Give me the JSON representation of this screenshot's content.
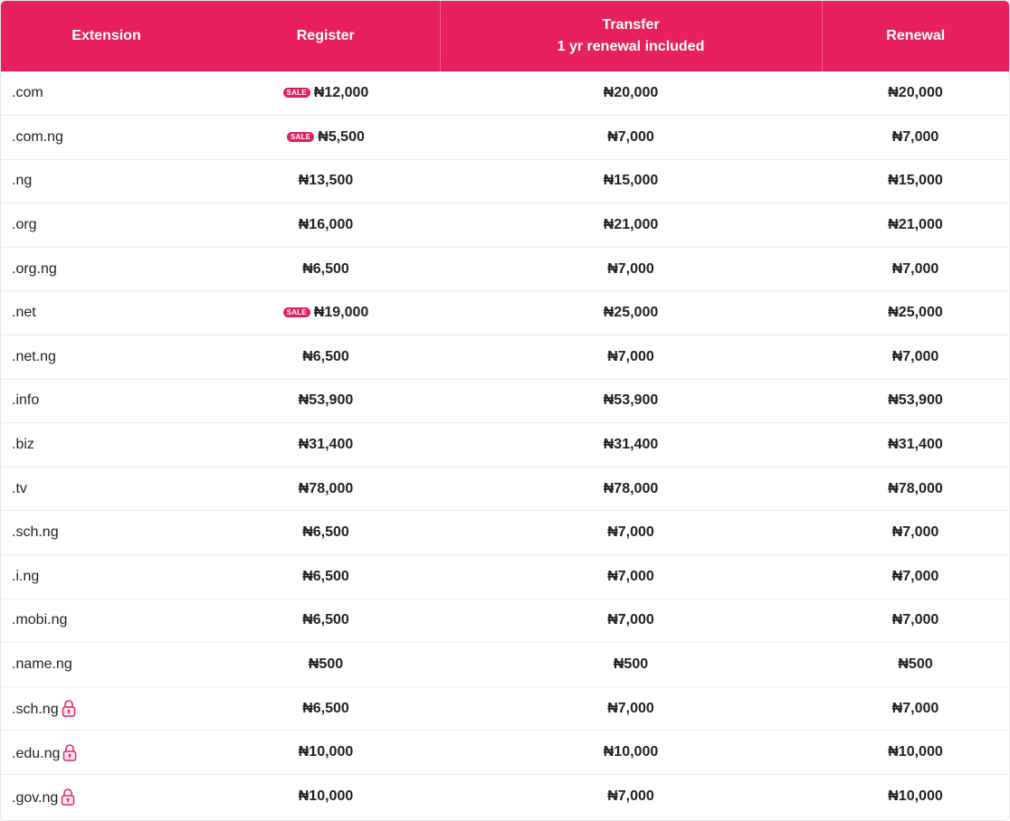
{
  "colors": {
    "header_bg": "#e8205f",
    "header_text": "#ffffff",
    "sale_badge": "#e0205f",
    "lock_icon": "#e8205f",
    "row_border": "#ececec"
  },
  "header": {
    "extension": "Extension",
    "register": "Register",
    "transfer": "Transfer",
    "transfer_sub": "1 yr renewal included",
    "renewal": "Renewal"
  },
  "sale_label": "SALE",
  "rows": [
    {
      "extension": ".com",
      "register": "₦12,000",
      "transfer": "₦20,000",
      "renewal": "₦20,000",
      "sale": true,
      "locked": false
    },
    {
      "extension": ".com.ng",
      "register": "₦5,500",
      "transfer": "₦7,000",
      "renewal": "₦7,000",
      "sale": true,
      "locked": false
    },
    {
      "extension": ".ng",
      "register": "₦13,500",
      "transfer": "₦15,000",
      "renewal": "₦15,000",
      "sale": false,
      "locked": false
    },
    {
      "extension": ".org",
      "register": "₦16,000",
      "transfer": "₦21,000",
      "renewal": "₦21,000",
      "sale": false,
      "locked": false
    },
    {
      "extension": ".org.ng",
      "register": "₦6,500",
      "transfer": "₦7,000",
      "renewal": "₦7,000",
      "sale": false,
      "locked": false
    },
    {
      "extension": ".net",
      "register": "₦19,000",
      "transfer": "₦25,000",
      "renewal": "₦25,000",
      "sale": true,
      "locked": false
    },
    {
      "extension": ".net.ng",
      "register": "₦6,500",
      "transfer": "₦7,000",
      "renewal": "₦7,000",
      "sale": false,
      "locked": false
    },
    {
      "extension": ".info",
      "register": "₦53,900",
      "transfer": "₦53,900",
      "renewal": "₦53,900",
      "sale": false,
      "locked": false
    },
    {
      "extension": ".biz",
      "register": "₦31,400",
      "transfer": "₦31,400",
      "renewal": "₦31,400",
      "sale": false,
      "locked": false
    },
    {
      "extension": ".tv",
      "register": "₦78,000",
      "transfer": "₦78,000",
      "renewal": "₦78,000",
      "sale": false,
      "locked": false
    },
    {
      "extension": ".sch.ng",
      "register": "₦6,500",
      "transfer": "₦7,000",
      "renewal": "₦7,000",
      "sale": false,
      "locked": false
    },
    {
      "extension": ".i.ng",
      "register": "₦6,500",
      "transfer": "₦7,000",
      "renewal": "₦7,000",
      "sale": false,
      "locked": false
    },
    {
      "extension": ".mobi.ng",
      "register": "₦6,500",
      "transfer": "₦7,000",
      "renewal": "₦7,000",
      "sale": false,
      "locked": false
    },
    {
      "extension": ".name.ng",
      "register": "₦500",
      "transfer": "₦500",
      "renewal": "₦500",
      "sale": false,
      "locked": false
    },
    {
      "extension": ".sch.ng",
      "register": "₦6,500",
      "transfer": "₦7,000",
      "renewal": "₦7,000",
      "sale": false,
      "locked": true
    },
    {
      "extension": ".edu.ng",
      "register": "₦10,000",
      "transfer": "₦10,000",
      "renewal": "₦10,000",
      "sale": false,
      "locked": true
    },
    {
      "extension": ".gov.ng",
      "register": "₦10,000",
      "transfer": "₦7,000",
      "renewal": "₦10,000",
      "sale": false,
      "locked": true
    }
  ]
}
